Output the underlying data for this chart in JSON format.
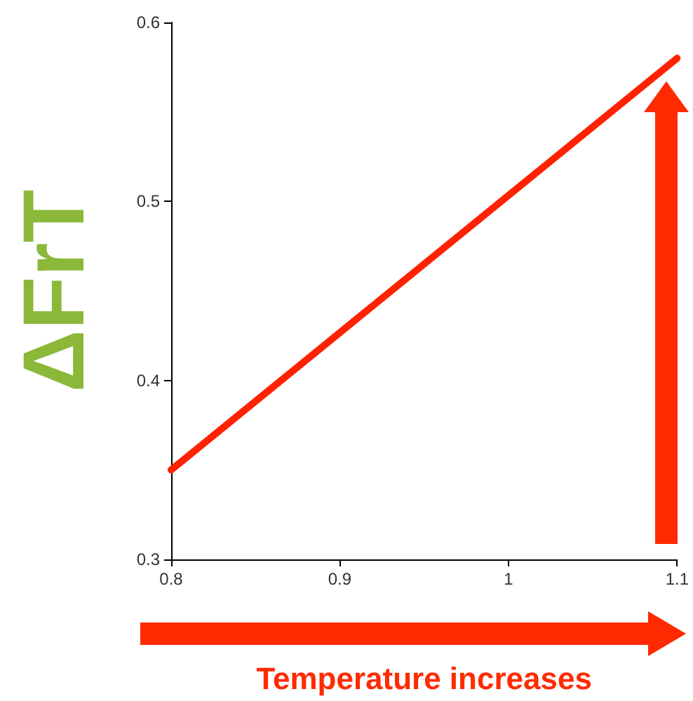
{
  "chart_data": {
    "type": "line",
    "xlabel": "Temperature increases",
    "ylabel": "ΔFrT",
    "x": [
      0.8,
      1.1
    ],
    "series": [
      {
        "color": "#ff2200",
        "values": [
          0.35,
          0.58
        ]
      }
    ],
    "xlim": [
      0.8,
      1.1
    ],
    "xticks": [
      0.8,
      0.9,
      1,
      1.1
    ],
    "ylim": [
      0.3,
      0.6
    ],
    "yticks": [
      0.3,
      0.4,
      0.5,
      0.6
    ],
    "grid": false,
    "marker": "none",
    "line_style": "solid"
  }
}
